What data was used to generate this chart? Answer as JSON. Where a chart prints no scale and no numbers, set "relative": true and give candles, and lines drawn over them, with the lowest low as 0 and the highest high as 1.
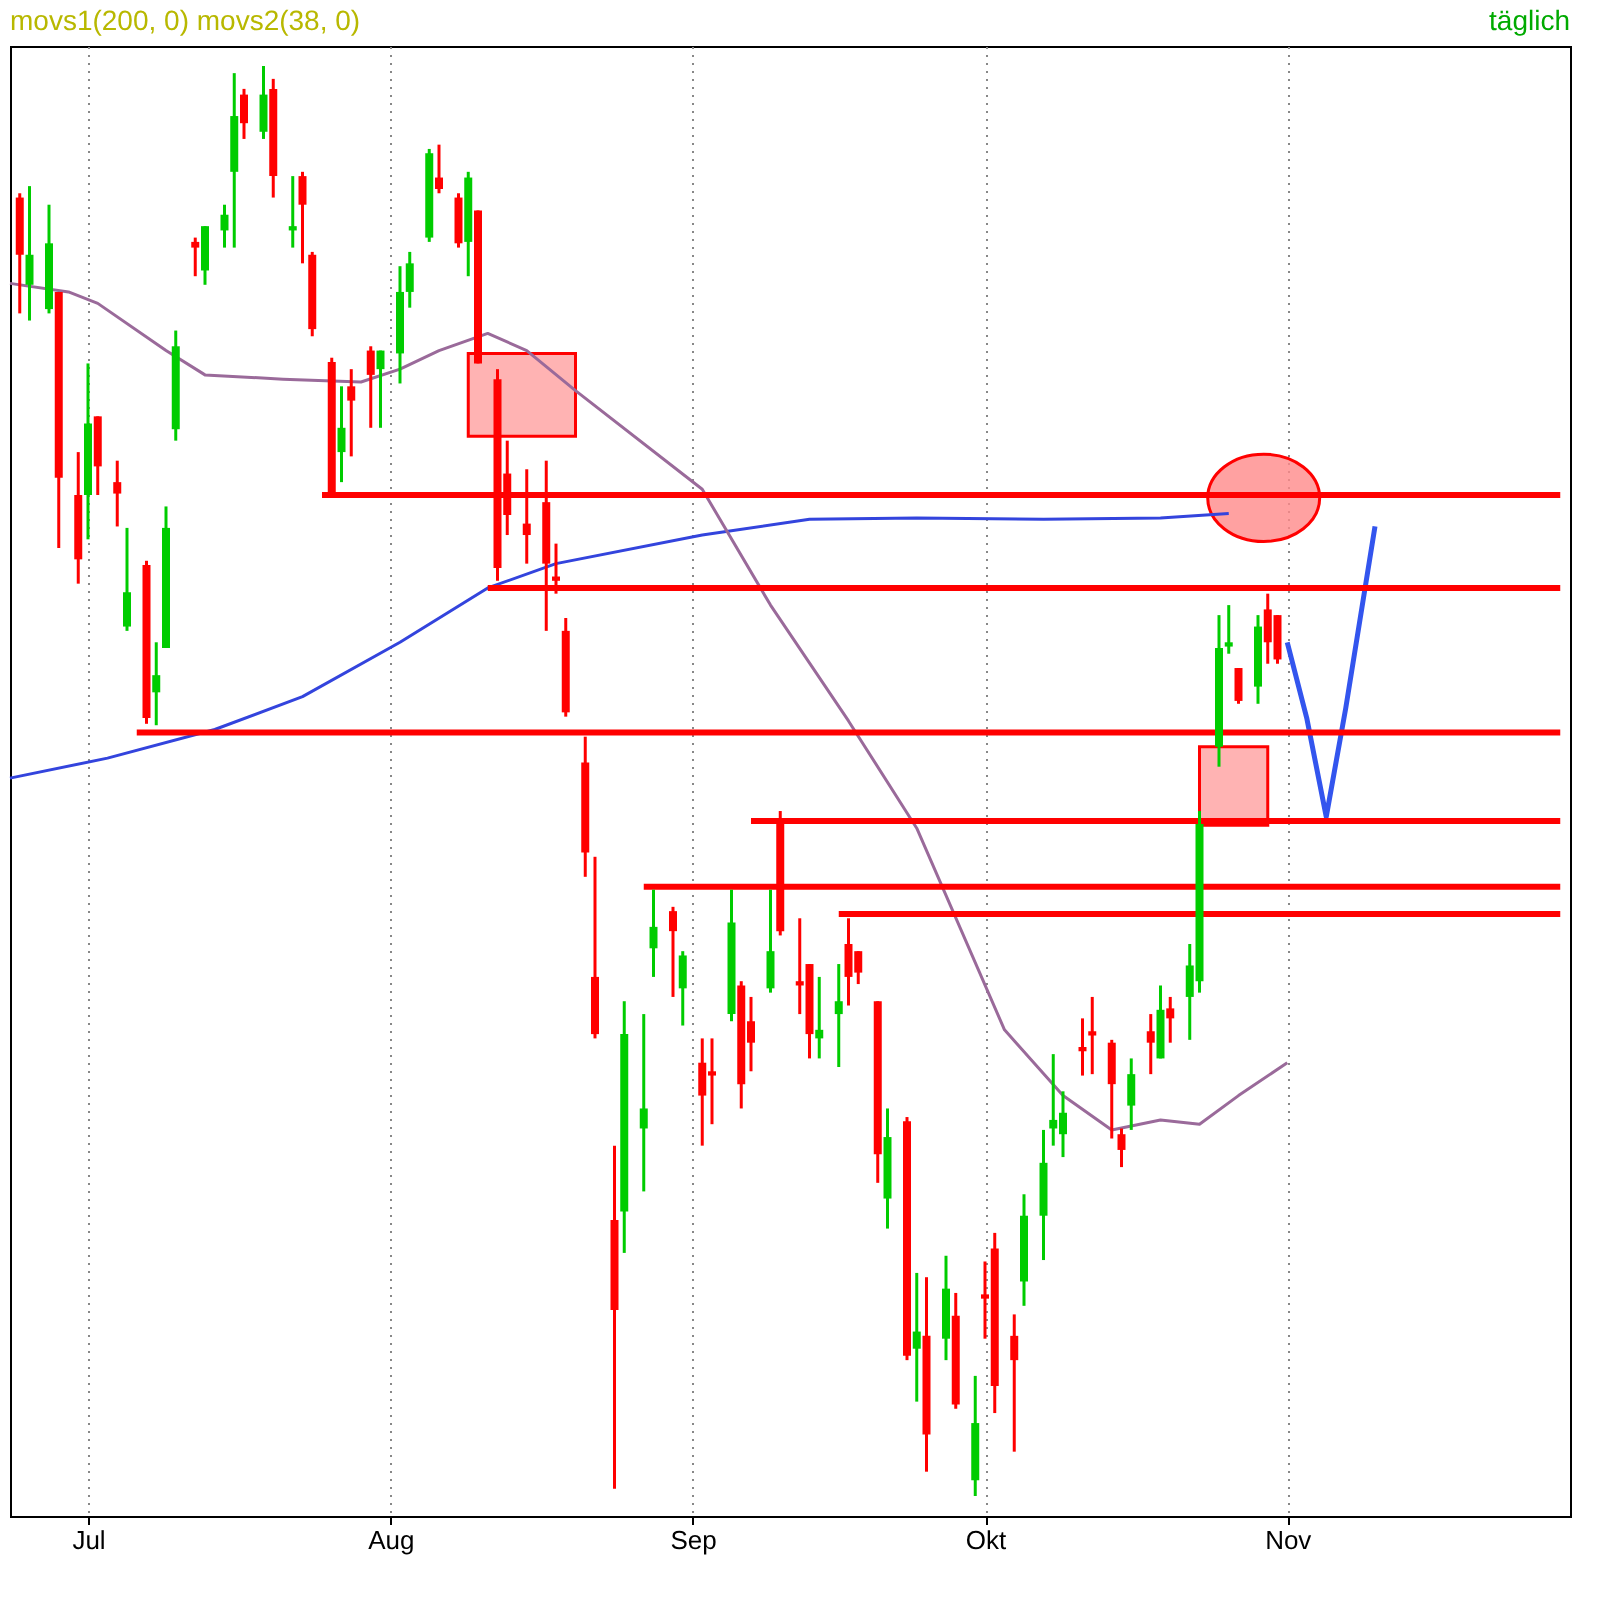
{
  "chart_data": {
    "type": "candlestick",
    "title": "movs1(200, 0) movs2(38, 0)",
    "annotations": [
      "täglich"
    ],
    "relative": true,
    "grid": "x",
    "xlim": [
      "--06-23",
      "--11-30"
    ],
    "xticks": [
      {
        "value": "--07-01",
        "label": "Jul"
      },
      {
        "value": "--08-01",
        "label": "Aug"
      },
      {
        "value": "--09-01",
        "label": "Sep"
      },
      {
        "value": "--10-01",
        "label": "Okt"
      },
      {
        "value": "--11-01",
        "label": "Nov"
      }
    ],
    "series": [
      {
        "type": "line",
        "color": "#3344dd",
        "x": [
          "--06-23",
          "--07-03",
          "--07-14",
          "--07-23",
          "--08-02",
          "--08-11",
          "--08-18",
          "--09-02",
          "--09-13",
          "--09-24",
          "--10-07",
          "--10-19",
          "--10-26"
        ],
        "values": [
          0.502,
          0.516,
          0.536,
          0.559,
          0.597,
          0.635,
          0.652,
          0.672,
          0.683,
          0.684,
          0.683,
          0.684,
          0.687
        ]
      },
      {
        "type": "line",
        "color": "#9a6a9a",
        "x": [
          "--06-23",
          "--06-29",
          "--07-02",
          "--07-09",
          "--07-13",
          "--07-21",
          "--07-29",
          "--08-02",
          "--08-06",
          "--08-11",
          "--08-15",
          "--08-20",
          "--09-02",
          "--09-09",
          "--09-17",
          "--09-24",
          "--10-03",
          "--10-09",
          "--10-14",
          "--10-19",
          "--10-23",
          "--10-27",
          "--11-01"
        ],
        "values": [
          0.848,
          0.842,
          0.834,
          0.801,
          0.784,
          0.781,
          0.779,
          0.788,
          0.801,
          0.813,
          0.801,
          0.773,
          0.704,
          0.623,
          0.542,
          0.467,
          0.326,
          0.28,
          0.256,
          0.263,
          0.26,
          0.28,
          0.303
        ]
      },
      {
        "type": "line",
        "color": "#3355ee",
        "x": [
          "--11-01",
          "--11-03",
          "--11-05",
          "--11-07",
          "--11-10"
        ],
        "values": [
          0.597,
          0.544,
          0.475,
          0.551,
          0.678
        ]
      },
      {
        "type": "line",
        "color": "#ff0000",
        "x": [
          "--07-25",
          "--11-29"
        ],
        "values": [
          0.7,
          0.7
        ]
      },
      {
        "type": "line",
        "color": "#ff0000",
        "x": [
          "--08-11",
          "--11-29"
        ],
        "values": [
          0.635,
          0.635
        ]
      },
      {
        "type": "line",
        "color": "#ff0000",
        "x": [
          "--07-06",
          "--11-29"
        ],
        "values": [
          0.534,
          0.534
        ]
      },
      {
        "type": "line",
        "color": "#ff0000",
        "x": [
          "--09-07",
          "--11-29"
        ],
        "values": [
          0.472,
          0.472
        ]
      },
      {
        "type": "line",
        "color": "#ff0000",
        "x": [
          "--08-27",
          "--11-29"
        ],
        "values": [
          0.426,
          0.426
        ]
      },
      {
        "type": "line",
        "color": "#ff0000",
        "x": [
          "--09-16",
          "--11-29"
        ],
        "values": [
          0.407,
          0.407
        ]
      },
      {
        "color": "#00cc00",
        "x": [
          "--06-25",
          "--06-27",
          "--07-01",
          "--07-05",
          "--07-08",
          "--07-09",
          "--07-10",
          "--07-13",
          "--07-15",
          "--07-16",
          "--07-19",
          "--07-22",
          "--07-27",
          "--07-31",
          "--08-02",
          "--08-03",
          "--08-05",
          "--08-09",
          "--08-25",
          "--08-27",
          "--08-28",
          "--08-31",
          "--09-05",
          "--09-09",
          "--09-14",
          "--09-16",
          "--09-21",
          "--09-24",
          "--09-27",
          "--09-30",
          "--10-05",
          "--10-07",
          "--10-08",
          "--10-09",
          "--10-16",
          "--10-19",
          "--10-22",
          "--10-23",
          "--10-25",
          "--10-26",
          "--10-29"
        ],
        "ohlc": [
          [
            0.847,
            0.916,
            0.822,
            0.868
          ],
          [
            0.83,
            0.903,
            0.827,
            0.876
          ],
          [
            0.7,
            0.792,
            0.669,
            0.75
          ],
          [
            0.608,
            0.677,
            0.605,
            0.632
          ],
          [
            0.562,
            0.597,
            0.539,
            0.574
          ],
          [
            0.593,
            0.692,
            0.593,
            0.677
          ],
          [
            0.746,
            0.815,
            0.738,
            0.804
          ],
          [
            0.857,
            0.888,
            0.847,
            0.888
          ],
          [
            0.885,
            0.903,
            0.873,
            0.896
          ],
          [
            0.926,
            0.995,
            0.873,
            0.965
          ],
          [
            0.954,
            1,
            0.949,
            0.98
          ],
          [
            0.885,
            0.923,
            0.873,
            0.888
          ],
          [
            0.73,
            0.776,
            0.709,
            0.747
          ],
          [
            0.788,
            0.801,
            0.747,
            0.801
          ],
          [
            0.799,
            0.86,
            0.778,
            0.842
          ],
          [
            0.842,
            0.87,
            0.831,
            0.862
          ],
          [
            0.88,
            0.942,
            0.877,
            0.939
          ],
          [
            0.877,
            0.926,
            0.853,
            0.922
          ],
          [
            0.199,
            0.346,
            0.17,
            0.323
          ],
          [
            0.257,
            0.337,
            0.213,
            0.271
          ],
          [
            0.383,
            0.424,
            0.363,
            0.398
          ],
          [
            0.355,
            0.381,
            0.329,
            0.378
          ],
          [
            0.337,
            0.424,
            0.332,
            0.401
          ],
          [
            0.355,
            0.424,
            0.352,
            0.381
          ],
          [
            0.32,
            0.363,
            0.306,
            0.326
          ],
          [
            0.337,
            0.372,
            0.3,
            0.346
          ],
          [
            0.208,
            0.271,
            0.187,
            0.251
          ],
          [
            0.103,
            0.156,
            0.066,
            0.115
          ],
          [
            0.11,
            0.168,
            0.095,
            0.145
          ],
          [
            0.011,
            0.084,
            0,
            0.051
          ],
          [
            0.15,
            0.211,
            0.133,
            0.196
          ],
          [
            0.196,
            0.256,
            0.165,
            0.233
          ],
          [
            0.257,
            0.309,
            0.245,
            0.263
          ],
          [
            0.253,
            0.283,
            0.237,
            0.268
          ],
          [
            0.273,
            0.306,
            0.256,
            0.295
          ],
          [
            0.306,
            0.357,
            0.306,
            0.34
          ],
          [
            0.349,
            0.386,
            0.319,
            0.371
          ],
          [
            0.36,
            0.479,
            0.352,
            0.47
          ],
          [
            0.524,
            0.616,
            0.51,
            0.593
          ],
          [
            0.594,
            0.623,
            0.589,
            0.597
          ],
          [
            0.566,
            0.616,
            0.554,
            0.608
          ]
        ]
      },
      {
        "color": "#ff0000",
        "x": [
          "--06-24",
          "--06-28",
          "--06-30",
          "--07-02",
          "--07-04",
          "--07-07",
          "--07-12",
          "--07-17",
          "--07-20",
          "--07-23",
          "--07-24",
          "--07-26",
          "--07-28",
          "--07-30",
          "--08-06",
          "--08-08",
          "--08-10",
          "--08-12",
          "--08-13",
          "--08-15",
          "--08-17",
          "--08-18",
          "--08-19",
          "--08-21",
          "--08-22",
          "--08-24",
          "--08-30",
          "--09-02",
          "--09-03",
          "--09-06",
          "--09-07",
          "--09-10",
          "--09-12",
          "--09-13",
          "--09-17",
          "--09-18",
          "--09-20",
          "--09-23",
          "--09-25",
          "--09-28",
          "--10-01",
          "--10-02",
          "--10-04",
          "--10-11",
          "--10-12",
          "--10-14",
          "--10-15",
          "--10-18",
          "--10-20",
          "--10-27",
          "--10-30",
          "--10-31"
        ],
        "ohlc": [
          [
            0.908,
            0.911,
            0.827,
            0.868
          ],
          [
            0.842,
            0.842,
            0.663,
            0.712
          ],
          [
            0.7,
            0.73,
            0.638,
            0.655
          ],
          [
            0.755,
            0.755,
            0.7,
            0.72
          ],
          [
            0.709,
            0.724,
            0.678,
            0.701
          ],
          [
            0.651,
            0.654,
            0.54,
            0.544
          ],
          [
            0.877,
            0.88,
            0.853,
            0.873
          ],
          [
            0.98,
            0.984,
            0.949,
            0.96
          ],
          [
            0.984,
            0.991,
            0.908,
            0.923
          ],
          [
            0.923,
            0.926,
            0.862,
            0.903
          ],
          [
            0.868,
            0.87,
            0.811,
            0.816
          ],
          [
            0.793,
            0.796,
            0.7,
            0.7
          ],
          [
            0.776,
            0.788,
            0.727,
            0.766
          ],
          [
            0.801,
            0.804,
            0.747,
            0.784
          ],
          [
            0.922,
            0.945,
            0.911,
            0.914
          ],
          [
            0.908,
            0.911,
            0.873,
            0.876
          ],
          [
            0.899,
            0.899,
            0.792,
            0.792
          ],
          [
            0.781,
            0.788,
            0.64,
            0.649
          ],
          [
            0.715,
            0.738,
            0.672,
            0.686
          ],
          [
            0.68,
            0.718,
            0.652,
            0.672
          ],
          [
            0.695,
            0.724,
            0.605,
            0.652
          ],
          [
            0.643,
            0.666,
            0.631,
            0.64
          ],
          [
            0.605,
            0.614,
            0.545,
            0.548
          ],
          [
            0.513,
            0.531,
            0.433,
            0.45
          ],
          [
            0.363,
            0.447,
            0.32,
            0.323
          ],
          [
            0.193,
            0.245,
            0.005,
            0.13
          ],
          [
            0.409,
            0.412,
            0.349,
            0.395
          ],
          [
            0.303,
            0.32,
            0.245,
            0.28
          ],
          [
            0.297,
            0.32,
            0.26,
            0.294
          ],
          [
            0.357,
            0.36,
            0.271,
            0.288
          ],
          [
            0.332,
            0.349,
            0.297,
            0.317
          ],
          [
            0.47,
            0.479,
            0.392,
            0.395
          ],
          [
            0.36,
            0.404,
            0.337,
            0.357
          ],
          [
            0.372,
            0.372,
            0.306,
            0.323
          ],
          [
            0.386,
            0.404,
            0.343,
            0.363
          ],
          [
            0.381,
            0.381,
            0.358,
            0.366
          ],
          [
            0.346,
            0.346,
            0.219,
            0.239
          ],
          [
            0.262,
            0.265,
            0.095,
            0.098
          ],
          [
            0.112,
            0.153,
            0.017,
            0.043
          ],
          [
            0.126,
            0.142,
            0.061,
            0.064
          ],
          [
            0.141,
            0.164,
            0.11,
            0.138
          ],
          [
            0.173,
            0.184,
            0.058,
            0.077
          ],
          [
            0.112,
            0.127,
            0.031,
            0.095
          ],
          [
            0.314,
            0.334,
            0.294,
            0.311
          ],
          [
            0.325,
            0.349,
            0.295,
            0.322
          ],
          [
            0.317,
            0.319,
            0.25,
            0.288
          ],
          [
            0.253,
            0.257,
            0.23,
            0.242
          ],
          [
            0.325,
            0.337,
            0.295,
            0.317
          ],
          [
            0.341,
            0.349,
            0.317,
            0.334
          ],
          [
            0.579,
            0.579,
            0.554,
            0.556
          ],
          [
            0.62,
            0.631,
            0.582,
            0.597
          ],
          [
            0.616,
            0.616,
            0.582,
            0.585
          ]
        ]
      }
    ]
  }
}
